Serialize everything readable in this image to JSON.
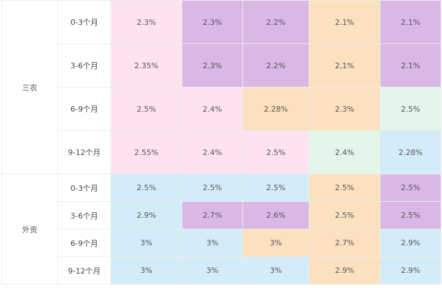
{
  "groups": [
    {
      "name": "三农",
      "rows": [
        {
          "term": "0-3个月",
          "rates": [
            "2.3%",
            "2.3%",
            "2.2%",
            "2.1%",
            "2.1%"
          ],
          "colors": [
            "pink",
            "purple",
            "purple",
            "orange",
            "purple"
          ]
        },
        {
          "term": "3-6个月",
          "rates": [
            "2.35%",
            "2.3%",
            "2.2%",
            "2.1%",
            "2.1%"
          ],
          "colors": [
            "pink",
            "purple",
            "purple",
            "orange",
            "purple"
          ]
        },
        {
          "term": "6-9个月",
          "rates": [
            "2.5%",
            "2.4%",
            "2.28%",
            "2.3%",
            "2.5%"
          ],
          "colors": [
            "pink",
            "pink",
            "orange",
            "orange",
            "green"
          ]
        },
        {
          "term": "9-12个月",
          "rates": [
            "2.55%",
            "2.4%",
            "2.5%",
            "2.4%",
            "2.28%"
          ],
          "colors": [
            "pink",
            "pink",
            "pink",
            "green",
            "blue"
          ]
        }
      ]
    },
    {
      "name": "外资",
      "rows": [
        {
          "term": "0-3个月",
          "rates": [
            "2.5%",
            "2.5%",
            "2.5%",
            "2.5%",
            "2.5%"
          ],
          "colors": [
            "blue",
            "blue",
            "blue",
            "orange",
            "purple"
          ]
        },
        {
          "term": "3-6个月",
          "rates": [
            "2.9%",
            "2.7%",
            "2.6%",
            "2.5%",
            "2.5%"
          ],
          "colors": [
            "blue",
            "purple",
            "purple",
            "orange",
            "purple"
          ]
        },
        {
          "term": "6-9个月",
          "rates": [
            "3%",
            "3%",
            "3%",
            "2.7%",
            "2.9%"
          ],
          "colors": [
            "blue",
            "blue",
            "orange",
            "orange",
            "blue"
          ]
        },
        {
          "term": "9-12个月",
          "rates": [
            "3%",
            "3%",
            "3%",
            "2.9%",
            "2.9%"
          ],
          "colors": [
            "blue",
            "blue",
            "blue",
            "orange",
            "blue"
          ]
        }
      ]
    }
  ],
  "palette": {
    "pink": "#fde3f0",
    "purple": "#d9b8e6",
    "orange": "#fce1bf",
    "green": "#e2f6ea",
    "blue": "#d4ecf8"
  }
}
